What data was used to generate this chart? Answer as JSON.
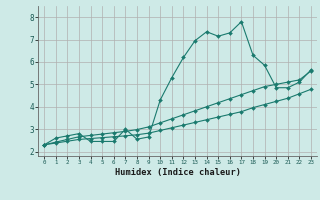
{
  "title": "",
  "xlabel": "Humidex (Indice chaleur)",
  "background_color": "#ceeae7",
  "grid_color": "#b0b0b0",
  "line_color": "#1a7a6e",
  "xlim": [
    -0.5,
    23.5
  ],
  "ylim": [
    1.8,
    8.5
  ],
  "xticks": [
    0,
    1,
    2,
    3,
    4,
    5,
    6,
    7,
    8,
    9,
    10,
    11,
    12,
    13,
    14,
    15,
    16,
    17,
    18,
    19,
    20,
    21,
    22,
    23
  ],
  "yticks": [
    2,
    3,
    4,
    5,
    6,
    7,
    8
  ],
  "line1_x": [
    0,
    1,
    2,
    3,
    4,
    5,
    6,
    7,
    8,
    9,
    10,
    11,
    12,
    13,
    14,
    15,
    16,
    17,
    18,
    19,
    20,
    21,
    22,
    23
  ],
  "line1_y": [
    2.3,
    2.6,
    2.7,
    2.8,
    2.45,
    2.45,
    2.45,
    3.0,
    2.55,
    2.65,
    4.3,
    5.3,
    6.2,
    6.95,
    7.35,
    7.15,
    7.3,
    7.8,
    6.3,
    5.85,
    4.85,
    4.85,
    5.1,
    5.65
  ],
  "line2_x": [
    0,
    1,
    2,
    3,
    4,
    5,
    6,
    7,
    8,
    9,
    10,
    11,
    12,
    13,
    14,
    15,
    16,
    17,
    18,
    19,
    20,
    21,
    22,
    23
  ],
  "line2_y": [
    2.3,
    2.42,
    2.54,
    2.66,
    2.72,
    2.78,
    2.84,
    2.9,
    2.98,
    3.1,
    3.28,
    3.46,
    3.64,
    3.82,
    4.0,
    4.18,
    4.36,
    4.54,
    4.72,
    4.9,
    5.0,
    5.1,
    5.2,
    5.6
  ],
  "line3_x": [
    0,
    1,
    2,
    3,
    4,
    5,
    6,
    7,
    8,
    9,
    10,
    11,
    12,
    13,
    14,
    15,
    16,
    17,
    18,
    19,
    20,
    21,
    22,
    23
  ],
  "line3_y": [
    2.3,
    2.38,
    2.46,
    2.54,
    2.58,
    2.62,
    2.66,
    2.7,
    2.75,
    2.82,
    2.94,
    3.06,
    3.18,
    3.3,
    3.42,
    3.54,
    3.66,
    3.78,
    3.96,
    4.1,
    4.24,
    4.38,
    4.58,
    4.78
  ],
  "markersize": 2.0,
  "linewidth": 0.8
}
